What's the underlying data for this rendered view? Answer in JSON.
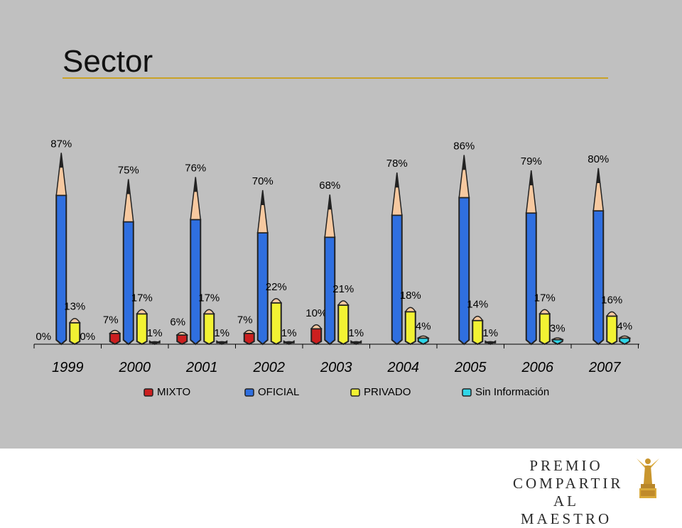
{
  "title": "Sector",
  "chart_data": {
    "type": "bar",
    "categories": [
      "1999",
      "2000",
      "2001",
      "2002",
      "2003",
      "2004",
      "2005",
      "2006",
      "2007"
    ],
    "ylim": [
      0,
      100
    ],
    "series": [
      {
        "name": "MIXTO",
        "color": "#cc1f1f",
        "values": [
          0,
          7,
          6,
          7,
          10,
          null,
          null,
          null,
          null
        ],
        "labels": [
          "0%",
          "7%",
          "6%",
          "7%",
          "10%",
          "",
          "",
          "",
          ""
        ]
      },
      {
        "name": "OFICIAL",
        "color": "#2f6fe0",
        "values": [
          87,
          75,
          76,
          70,
          68,
          78,
          86,
          79,
          80
        ],
        "labels": [
          "87%",
          "75%",
          "76%",
          "70%",
          "68%",
          "78%",
          "86%",
          "79%",
          "80%"
        ]
      },
      {
        "name": "PRIVADO",
        "color": "#f2f233",
        "values": [
          13,
          17,
          17,
          22,
          21,
          18,
          14,
          17,
          16
        ],
        "labels": [
          "13%",
          "17%",
          "17%",
          "22%",
          "21%",
          "18%",
          "14%",
          "17%",
          "16%"
        ]
      },
      {
        "name": "Sin Información",
        "color": "#2fd6e8",
        "values": [
          0,
          1,
          1,
          1,
          1,
          4,
          1,
          3,
          4
        ],
        "labels": [
          "0%",
          "1%",
          "1%",
          "1%",
          "1%",
          "4%",
          "1%",
          "3%",
          "4%"
        ]
      }
    ],
    "legend_position": "bottom",
    "grid": false
  },
  "logo": {
    "line1": "PREMIO",
    "line2": "COMPARTIR",
    "line3": "AL MAESTRO",
    "trophy_icon": "trophy-icon"
  }
}
